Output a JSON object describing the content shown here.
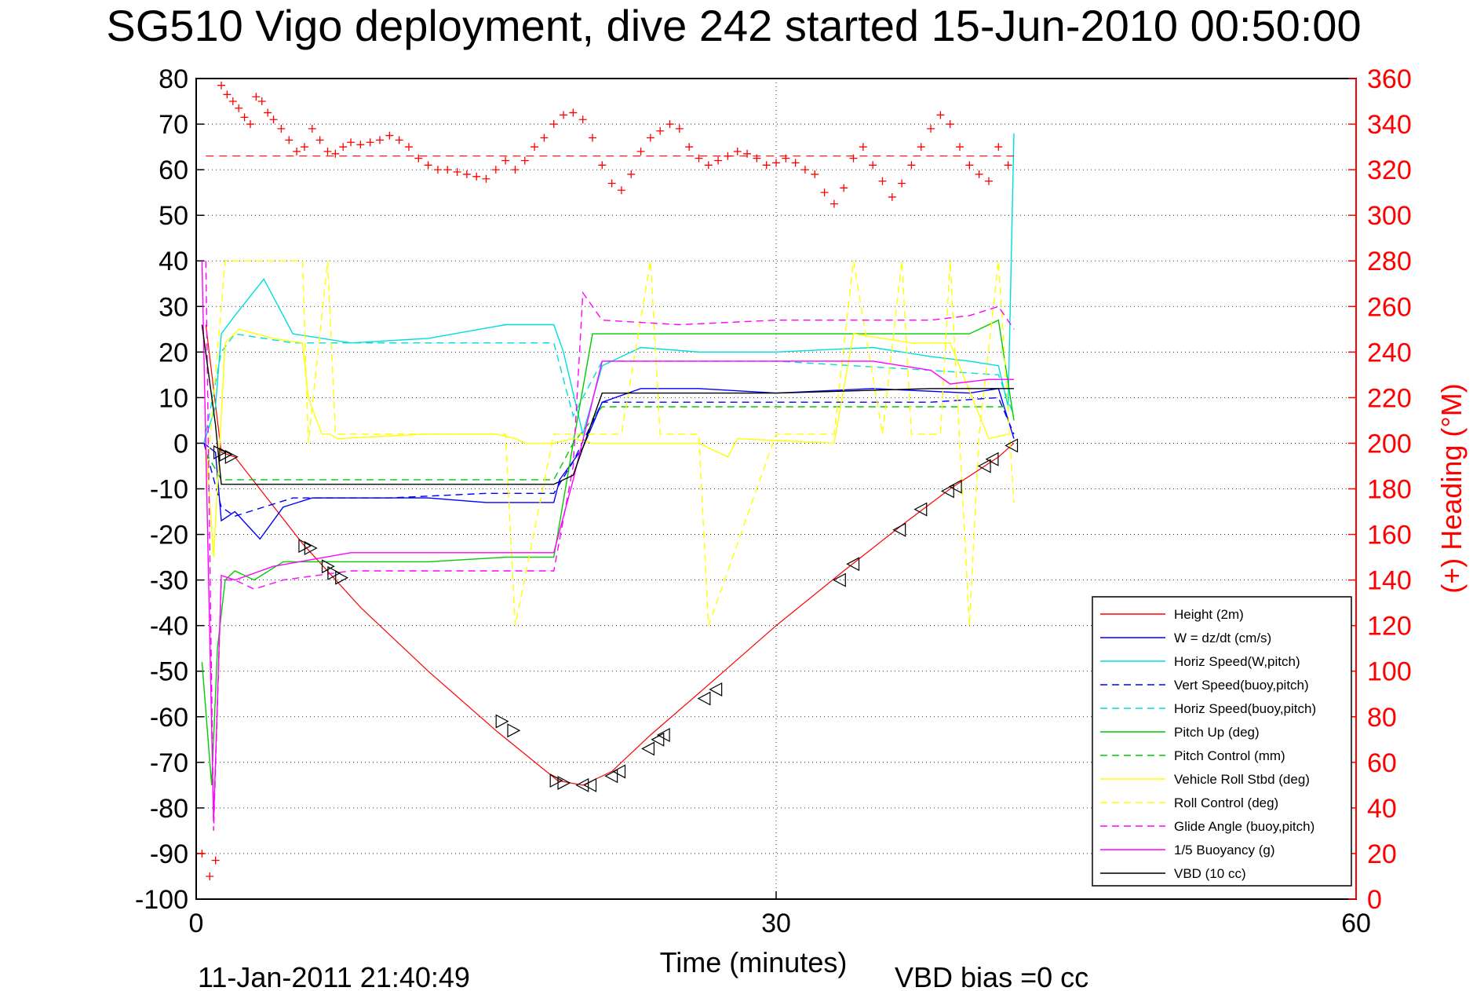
{
  "chart_data": {
    "type": "line",
    "title": "SG510 Vigo deployment, dive 242 started 15-Jun-2010 00:50:00",
    "xlabel": "Time (minutes)",
    "ylabel_right": "(+) Heading (°M)",
    "xlim": [
      0,
      60
    ],
    "ylim_left": [
      -100,
      80
    ],
    "ylim_right": [
      0,
      360
    ],
    "x_ticks": [
      0,
      30,
      60
    ],
    "y_ticks_left": [
      80,
      70,
      60,
      50,
      40,
      30,
      20,
      10,
      0,
      -10,
      -20,
      -30,
      -40,
      -50,
      -60,
      -70,
      -80,
      -90,
      -100
    ],
    "y_ticks_right": [
      360,
      340,
      320,
      300,
      280,
      260,
      240,
      220,
      200,
      180,
      160,
      140,
      120,
      100,
      80,
      60,
      40,
      20,
      0
    ],
    "grid": true,
    "legend_position": "bottom-right",
    "footer_left": "11-Jan-2011 21:40:49",
    "footer_right": "VBD bias =0 cc",
    "series": [
      {
        "name": "Height (2m)",
        "color": "#ff0000",
        "style": "solid",
        "x": [
          0.5,
          1.3,
          2,
          5.5,
          8.5,
          12,
          15.5,
          18.7,
          20,
          21.5,
          23.5,
          26.5,
          30,
          33.5,
          36.5,
          39,
          41.5,
          42.3
        ],
        "y": [
          26,
          -2,
          -3,
          -22,
          -36,
          -50,
          -63,
          -74,
          -75,
          -72,
          -64,
          -53,
          -40,
          -28,
          -18,
          -10,
          -3,
          0
        ]
      },
      {
        "name": "W = dz/dt (cm/s)",
        "color": "#0000ff",
        "style": "solid",
        "x": [
          0.4,
          1,
          1.3,
          2,
          3.3,
          4.5,
          6,
          9,
          12,
          15,
          18.5,
          18.8,
          20,
          21,
          23,
          26,
          30,
          35,
          40,
          41.5,
          42.3
        ],
        "y": [
          0,
          -2,
          -17,
          -15,
          -21,
          -14,
          -12,
          -12,
          -12,
          -13,
          -13,
          -8,
          -1,
          9,
          12,
          12,
          11,
          12,
          11,
          12,
          1
        ]
      },
      {
        "name": "Horiz Speed(W,pitch)",
        "color": "#00dddd",
        "style": "solid",
        "x": [
          0.4,
          1,
          1.3,
          2,
          3.5,
          5,
          8,
          12,
          16,
          18.5,
          19,
          20,
          21,
          23,
          26,
          30,
          35,
          38,
          40,
          41.5,
          42,
          42.3
        ],
        "y": [
          0,
          8,
          24,
          28,
          36,
          24,
          22,
          23,
          26,
          26,
          20,
          2,
          17,
          21,
          20,
          20,
          21,
          19,
          18,
          17,
          8,
          68
        ]
      },
      {
        "name": "Vert Speed(buoy,pitch)",
        "color": "#0000ff",
        "style": "dashed",
        "x": [
          0.4,
          1.3,
          2,
          5,
          10,
          15,
          18.5,
          19.5,
          21,
          30,
          38,
          41.5,
          42.3
        ],
        "y": [
          0,
          -14,
          -16,
          -12,
          -12,
          -11,
          -11,
          -4,
          9,
          9,
          9,
          10,
          2
        ]
      },
      {
        "name": "Horiz Speed(buoy,pitch)",
        "color": "#00dddd",
        "style": "dashed",
        "x": [
          0.4,
          1.3,
          2,
          5,
          10,
          15,
          18.5,
          19.5,
          21,
          30,
          38,
          41.5,
          42.3
        ],
        "y": [
          0,
          20,
          24,
          22,
          22,
          22,
          22,
          6,
          18,
          18,
          16,
          15,
          6
        ]
      },
      {
        "name": "Pitch Up (deg)",
        "color": "#00cc00",
        "style": "solid",
        "x": [
          0.3,
          0.8,
          1.1,
          1.5,
          2,
          3,
          4.5,
          8,
          12,
          16,
          18.5,
          19.5,
          20.5,
          25,
          30,
          35,
          40,
          41.5,
          42.3
        ],
        "y": [
          -48,
          -75,
          -45,
          -30,
          -28,
          -30,
          -26,
          -26,
          -26,
          -25,
          -25,
          0,
          24,
          24,
          24,
          24,
          24,
          27,
          5
        ]
      },
      {
        "name": "Pitch Control (mm)",
        "color": "#00cc00",
        "style": "dashed",
        "x": [
          0.5,
          1.3,
          2,
          8,
          15,
          18.5,
          19.5,
          21,
          30,
          38,
          42
        ],
        "y": [
          -2,
          -8,
          -8,
          -8,
          -8,
          -8,
          0,
          8,
          8,
          8,
          8
        ]
      },
      {
        "name": "Vehicle Roll Stbd (deg)",
        "color": "#ffff00",
        "style": "solid",
        "x": [
          0.5,
          0.9,
          1.5,
          2.2,
          4,
          5.5,
          5.8,
          6.5,
          6.9,
          7.3,
          12,
          15.5,
          16.5,
          17,
          18.5,
          19.5,
          20.5,
          26,
          27.5,
          28,
          33,
          34,
          37,
          39,
          41,
          42
        ],
        "y": [
          0,
          -25,
          22,
          25,
          23,
          22,
          10,
          2,
          2,
          1,
          2,
          2,
          1,
          0,
          0,
          1,
          0,
          0,
          -3,
          1,
          0,
          24,
          22,
          22,
          1,
          2
        ]
      },
      {
        "name": "Roll Control (deg)",
        "color": "#ffff00",
        "style": "dashed",
        "x": [
          0.5,
          1.5,
          2,
          5.5,
          5.8,
          6.8,
          7.2,
          8,
          15,
          16,
          16.5,
          18.5,
          19.5,
          21.5,
          22,
          23.5,
          24,
          26,
          26.5,
          30,
          33,
          34,
          35.5,
          36.5,
          37,
          38.5,
          39,
          40,
          40.5,
          41.5,
          42.3
        ],
        "y": [
          -10,
          40,
          40,
          40,
          0,
          40,
          2,
          2,
          2,
          2,
          -40,
          2,
          2,
          2,
          2,
          40,
          2,
          2,
          -40,
          2,
          2,
          40,
          2,
          40,
          2,
          2,
          40,
          -40,
          2,
          40,
          -13
        ]
      },
      {
        "name": "Glide Angle (buoy,pitch)",
        "color": "#ff00ff",
        "style": "dashed",
        "x": [
          0.5,
          0.9,
          1.3,
          2,
          3,
          4.5,
          8,
          12,
          16,
          18.5,
          19.5,
          20,
          21,
          25,
          30,
          35,
          38,
          40,
          41.5,
          42.3
        ],
        "y": [
          40,
          -85,
          -30,
          -30,
          -32,
          -30,
          -28,
          -28,
          -28,
          -28,
          -5,
          33,
          27,
          26,
          27,
          27,
          27,
          28,
          30,
          25
        ]
      },
      {
        "name": "1/5 Buoyancy (g)",
        "color": "#ff00ff",
        "style": "solid",
        "x": [
          0.3,
          0.9,
          1.3,
          2,
          4,
          8,
          12,
          16,
          18.5,
          19.5,
          21,
          23,
          30,
          35,
          38,
          39,
          41,
          42.3
        ],
        "y": [
          40,
          -83,
          -29,
          -30,
          -27,
          -24,
          -24,
          -24,
          -24,
          -8,
          18,
          18,
          18,
          18,
          16,
          13,
          14,
          14
        ]
      },
      {
        "name": "VBD (10 cc)",
        "color": "#000000",
        "style": "solid",
        "x": [
          0.3,
          1,
          1.3,
          18.5,
          19.5,
          21,
          30,
          38,
          42.3
        ],
        "y": [
          26,
          4,
          -9,
          -9,
          -7,
          11,
          11,
          12,
          12
        ]
      }
    ],
    "heading_points": {
      "color": "#ff0000",
      "marker": "+",
      "reference_value": 326,
      "x": [
        0.3,
        0.7,
        1.0,
        1.3,
        1.6,
        1.9,
        2.2,
        2.5,
        2.8,
        3.1,
        3.4,
        3.7,
        4.0,
        4.4,
        4.8,
        5.2,
        5.6,
        6.0,
        6.4,
        6.8,
        7.2,
        7.6,
        8.0,
        8.5,
        9.0,
        9.5,
        10.0,
        10.5,
        11.0,
        11.5,
        12.0,
        12.5,
        13.0,
        13.5,
        14.0,
        14.5,
        15.0,
        15.5,
        16.0,
        16.5,
        17.0,
        17.5,
        18.0,
        18.5,
        19.0,
        19.5,
        20.0,
        20.5,
        21.0,
        21.5,
        22.0,
        22.5,
        23.0,
        23.5,
        24.0,
        24.5,
        25.0,
        25.5,
        26.0,
        26.5,
        27.0,
        27.5,
        28.0,
        28.5,
        29.0,
        29.5,
        30.0,
        30.5,
        31.0,
        31.5,
        32.0,
        32.5,
        33.0,
        33.5,
        34.0,
        34.5,
        35.0,
        35.5,
        36.0,
        36.5,
        37.0,
        37.5,
        38.0,
        38.5,
        39.0,
        39.5,
        40.0,
        40.5,
        41.0,
        41.5,
        42.0
      ],
      "y": [
        20,
        10,
        17,
        357,
        353,
        350,
        347,
        343,
        340,
        352,
        350,
        345,
        342,
        338,
        333,
        328,
        330,
        338,
        333,
        328,
        327,
        330,
        332,
        331,
        332,
        333,
        335,
        333,
        330,
        325,
        322,
        320,
        320,
        319,
        318,
        317,
        316,
        320,
        324,
        320,
        324,
        330,
        334,
        340,
        344,
        345,
        342,
        334,
        322,
        314,
        311,
        318,
        328,
        334,
        337,
        340,
        338,
        330,
        325,
        322,
        324,
        326,
        328,
        327,
        325,
        322,
        323,
        325,
        323,
        320,
        318,
        310,
        305,
        312,
        325,
        330,
        322,
        315,
        308,
        314,
        322,
        330,
        338,
        344,
        340,
        330,
        322,
        318,
        315,
        330,
        322
      ]
    },
    "triangle_markers": {
      "color": "#000000",
      "x": [
        1.2,
        1.5,
        1.8,
        5.6,
        5.9,
        6.8,
        7.1,
        7.5,
        15.8,
        16.4,
        18.6,
        19.0,
        20.0,
        20.4,
        21.5,
        21.9,
        23.4,
        23.9,
        24.2,
        26.3,
        26.9,
        33.3,
        34.0,
        36.4,
        37.5,
        38.9,
        39.3,
        40.8,
        41.2,
        42.2
      ],
      "y": [
        -2,
        -2.5,
        -3,
        -22.5,
        -23,
        -27,
        -28.5,
        -29.5,
        -61,
        -63,
        -74,
        -74.5,
        -75,
        -75,
        -73,
        -72,
        -67,
        -65,
        -64,
        -56,
        -54,
        -30,
        -26.5,
        -19,
        -14.5,
        -10.5,
        -9.5,
        -5,
        -3.5,
        -0.5
      ]
    },
    "legend_line_samples": "solid/dashed per series"
  }
}
